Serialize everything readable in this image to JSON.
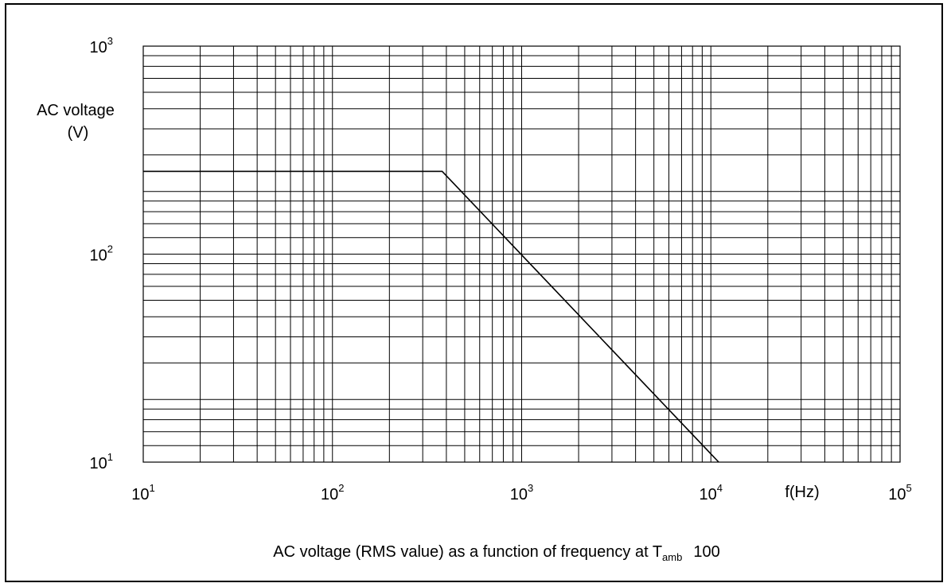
{
  "chart_data": {
    "type": "line",
    "x_scale": "log",
    "y_scale": "log",
    "xlim": [
      10,
      100000
    ],
    "ylim": [
      10,
      1000
    ],
    "grid": true,
    "x_ticks": [
      {
        "base": "10",
        "exp": "1",
        "value": 10
      },
      {
        "base": "10",
        "exp": "2",
        "value": 100
      },
      {
        "base": "10",
        "exp": "3",
        "value": 1000
      },
      {
        "base": "10",
        "exp": "4",
        "value": 10000
      },
      {
        "base": "10",
        "exp": "5",
        "value": 100000
      }
    ],
    "y_ticks": [
      {
        "base": "10",
        "exp": "1",
        "value": 10
      },
      {
        "base": "10",
        "exp": "2",
        "value": 100
      },
      {
        "base": "10",
        "exp": "3",
        "value": 1000
      }
    ],
    "xlabel": "f(Hz)",
    "ylabel_line1": "AC voltage",
    "ylabel_line2": "(V)",
    "caption": {
      "text": "AC voltage (RMS value) as a function of frequency at T",
      "sub": "amb",
      "suffix": "100"
    },
    "series": [
      {
        "x": [
          10,
          380,
          11000
        ],
        "y": [
          250,
          250,
          10
        ],
        "color": "#000000"
      }
    ]
  }
}
